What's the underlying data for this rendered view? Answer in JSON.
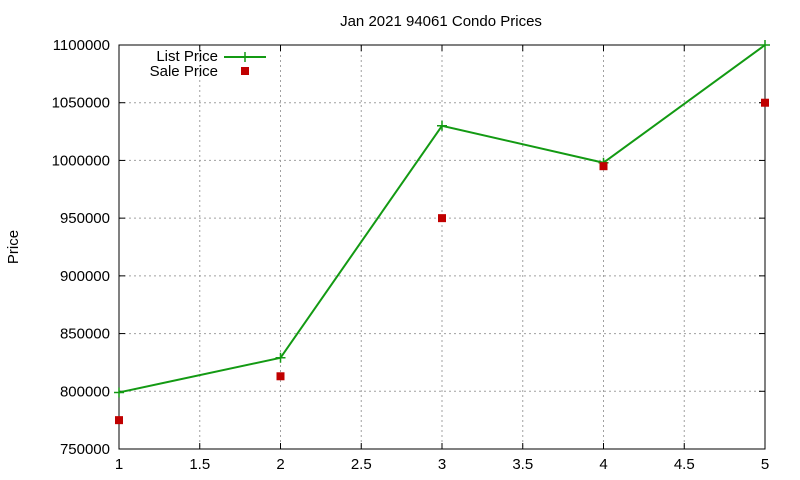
{
  "chart_data": {
    "type": "line",
    "title": "Jan 2021 94061 Condo Prices",
    "xlabel": "",
    "ylabel": "Price",
    "xlim": [
      1,
      5
    ],
    "ylim": [
      750000,
      1100000
    ],
    "xticks": [
      "1",
      "1.5",
      "2",
      "2.5",
      "3",
      "3.5",
      "4",
      "4.5",
      "5"
    ],
    "yticks": [
      "750000",
      "800000",
      "850000",
      "900000",
      "950000",
      "1000000",
      "1050000",
      "1100000"
    ],
    "grid": true,
    "legend_position": "top-left",
    "series": [
      {
        "name": "List Price",
        "style": "line-with-plus-markers",
        "color": "#139a13",
        "x": [
          1,
          2,
          3,
          4,
          5
        ],
        "y": [
          799000,
          829000,
          1030000,
          998000,
          1100000
        ]
      },
      {
        "name": "Sale Price",
        "style": "square-markers",
        "color": "#c00000",
        "x": [
          1,
          2,
          3,
          4,
          5
        ],
        "y": [
          775000,
          813000,
          950000,
          995000,
          1050000
        ]
      }
    ]
  }
}
